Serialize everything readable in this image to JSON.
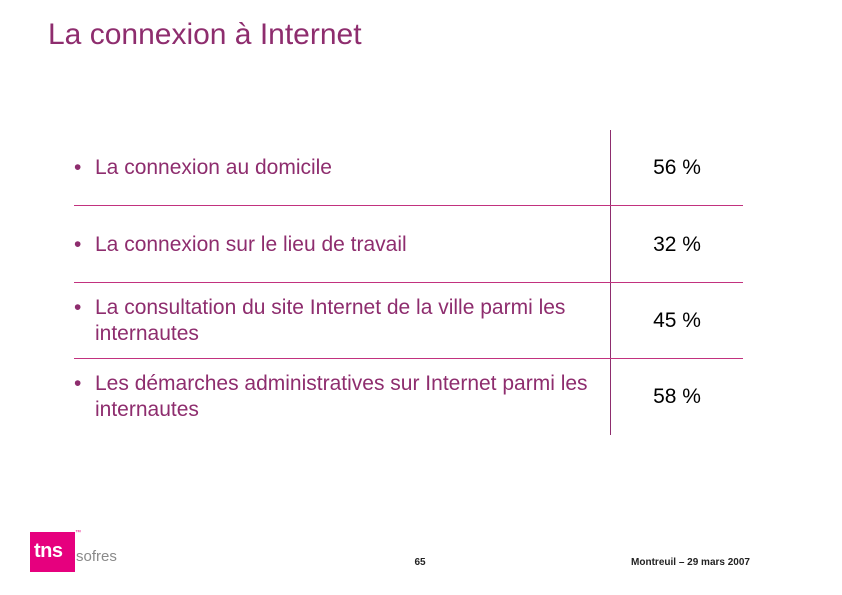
{
  "slide": {
    "title": "La connexion à Internet"
  },
  "table": {
    "bullet": "•",
    "rows": [
      {
        "label": "La connexion au domicile",
        "value": "56 %"
      },
      {
        "label": "La connexion sur le lieu de travail",
        "value": "32 %"
      },
      {
        "label": "La consultation du site Internet de la ville parmi les internautes",
        "value": "45 %"
      },
      {
        "label": "Les démarches administratives sur Internet parmi les internautes",
        "value": "58 %"
      }
    ]
  },
  "logo": {
    "brand": "tns",
    "tm": "™",
    "sub": "sofres",
    "color": "#e6007e"
  },
  "footer": {
    "page_number": "65",
    "location_date": "Montreuil – 29 mars 2007"
  },
  "colors": {
    "title": "#8e2d6e",
    "divider": "#c2327f"
  }
}
